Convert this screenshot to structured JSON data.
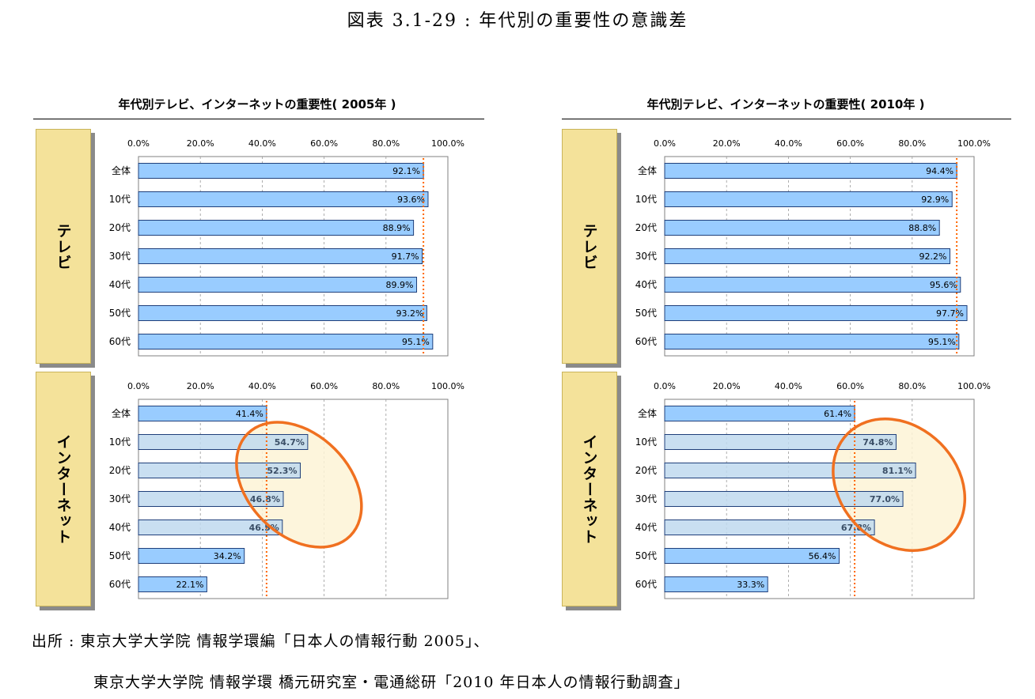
{
  "figure_title": "図表 3.1-29 : 年代別の重要性の意識差",
  "panels": [
    {
      "title": "年代別テレビ、インターネットの重要性( 2005年 )"
    },
    {
      "title": "年代別テレビ、インターネットの重要性( 2010年 )"
    }
  ],
  "row_tags": {
    "tv": "テレビ",
    "internet": "インターネット"
  },
  "source_line1": "出所 : 東京大学大学院 情報学環編「日本人の情報行動 2005」、",
  "source_line2": "東京大学大学院 情報学環 橋元研究室・電通総研「2010 年日本人の情報行動調査」",
  "colors": {
    "bar_fill": "#99ccff",
    "bar_stroke": "#1f3f7a",
    "highlight_bar": "#bfd9ee",
    "reference_line": "#ff6600",
    "ellipse_fill": "#fdf3d6",
    "ellipse_stroke": "#f07020",
    "tag_fill": "#f4e29a"
  },
  "chart_data": [
    {
      "type": "bar",
      "orientation": "horizontal",
      "panel": "2005",
      "group": "テレビ",
      "categories": [
        "全体",
        "10代",
        "20代",
        "30代",
        "40代",
        "50代",
        "60代"
      ],
      "values": [
        92.1,
        93.6,
        88.9,
        91.7,
        89.9,
        93.2,
        95.1
      ],
      "value_labels": [
        "92.1%",
        "93.6%",
        "88.9%",
        "91.7%",
        "89.9%",
        "93.2%",
        "95.1%"
      ],
      "xlim": [
        0,
        100
      ],
      "ticks": [
        "0.0%",
        "20.0%",
        "40.0%",
        "60.0%",
        "80.0%",
        "100.0%"
      ],
      "reference_line": 92.1,
      "highlight": []
    },
    {
      "type": "bar",
      "orientation": "horizontal",
      "panel": "2005",
      "group": "インターネット",
      "categories": [
        "全体",
        "10代",
        "20代",
        "30代",
        "40代",
        "50代",
        "60代"
      ],
      "values": [
        41.4,
        54.7,
        52.3,
        46.8,
        46.5,
        34.2,
        22.1
      ],
      "value_labels": [
        "41.4%",
        "54.7%",
        "52.3%",
        "46.8%",
        "46.5%",
        "34.2%",
        "22.1%"
      ],
      "xlim": [
        0,
        100
      ],
      "ticks": [
        "0.0%",
        "20.0%",
        "40.0%",
        "60.0%",
        "80.0%",
        "100.0%"
      ],
      "reference_line": 41.4,
      "highlight": [
        1,
        2,
        3,
        4
      ]
    },
    {
      "type": "bar",
      "orientation": "horizontal",
      "panel": "2010",
      "group": "テレビ",
      "categories": [
        "全体",
        "10代",
        "20代",
        "30代",
        "40代",
        "50代",
        "60代"
      ],
      "values": [
        94.4,
        92.9,
        88.8,
        92.2,
        95.6,
        97.7,
        95.1
      ],
      "value_labels": [
        "94.4%",
        "92.9%",
        "88.8%",
        "92.2%",
        "95.6%",
        "97.7%",
        "95.1%"
      ],
      "xlim": [
        0,
        100
      ],
      "ticks": [
        "0.0%",
        "20.0%",
        "40.0%",
        "60.0%",
        "80.0%",
        "100.0%"
      ],
      "reference_line": 94.4,
      "highlight": []
    },
    {
      "type": "bar",
      "orientation": "horizontal",
      "panel": "2010",
      "group": "インターネット",
      "categories": [
        "全体",
        "10代",
        "20代",
        "30代",
        "40代",
        "50代",
        "60代"
      ],
      "values": [
        61.4,
        74.8,
        81.1,
        77.0,
        67.8,
        56.4,
        33.3
      ],
      "value_labels": [
        "61.4%",
        "74.8%",
        "81.1%",
        "77.0%",
        "67.8%",
        "56.4%",
        "33.3%"
      ],
      "xlim": [
        0,
        100
      ],
      "ticks": [
        "0.0%",
        "20.0%",
        "40.0%",
        "60.0%",
        "80.0%",
        "100.0%"
      ],
      "reference_line": 61.4,
      "highlight": [
        1,
        2,
        3,
        4
      ]
    }
  ]
}
